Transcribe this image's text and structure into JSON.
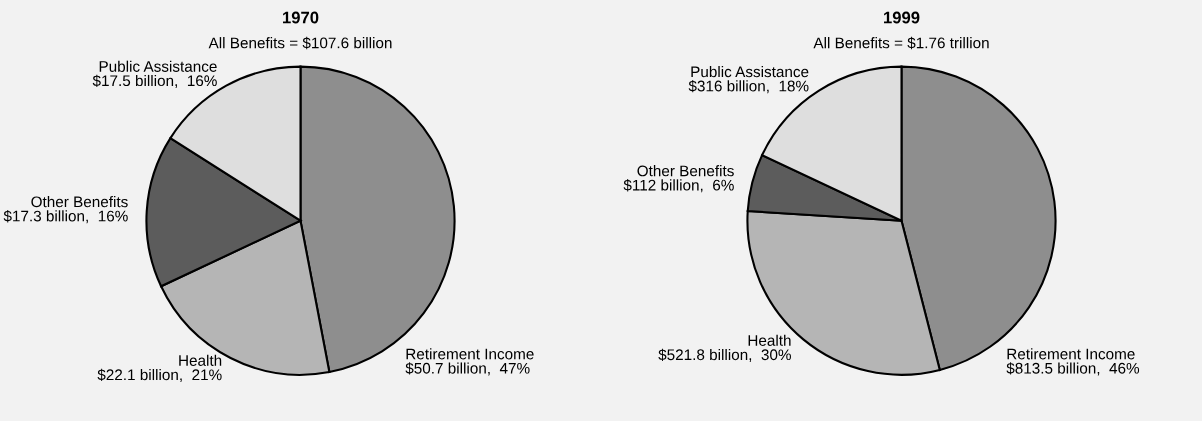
{
  "chart_data": [
    {
      "type": "pie",
      "title": "1970",
      "subtitle": "All Benefits = $107.6 billion",
      "categories": [
        "Retirement Income",
        "Health",
        "Other Benefits",
        "Public Assistance"
      ],
      "values": [
        47,
        21,
        16,
        16
      ],
      "value_labels": [
        "$50.7 billion,  47%",
        "$22.1 billion,  21%",
        "$17.3 billion,  16%",
        "$17.5 billion,  16%"
      ],
      "colors": [
        "#8e8e8e",
        "#b5b5b5",
        "#5c5c5c",
        "#dedede"
      ]
    },
    {
      "type": "pie",
      "title": "1999",
      "subtitle": "All Benefits = $1.76 trillion",
      "categories": [
        "Retirement Income",
        "Health",
        "Other Benefits",
        "Public Assistance"
      ],
      "values": [
        46,
        30,
        6,
        18
      ],
      "value_labels": [
        "$813.5 billion,  46%",
        "$521.8 billion,  30%",
        "$112 billion,  6%",
        "$316 billion,  18%"
      ],
      "colors": [
        "#8e8e8e",
        "#b5b5b5",
        "#5c5c5c",
        "#dedede"
      ]
    }
  ]
}
